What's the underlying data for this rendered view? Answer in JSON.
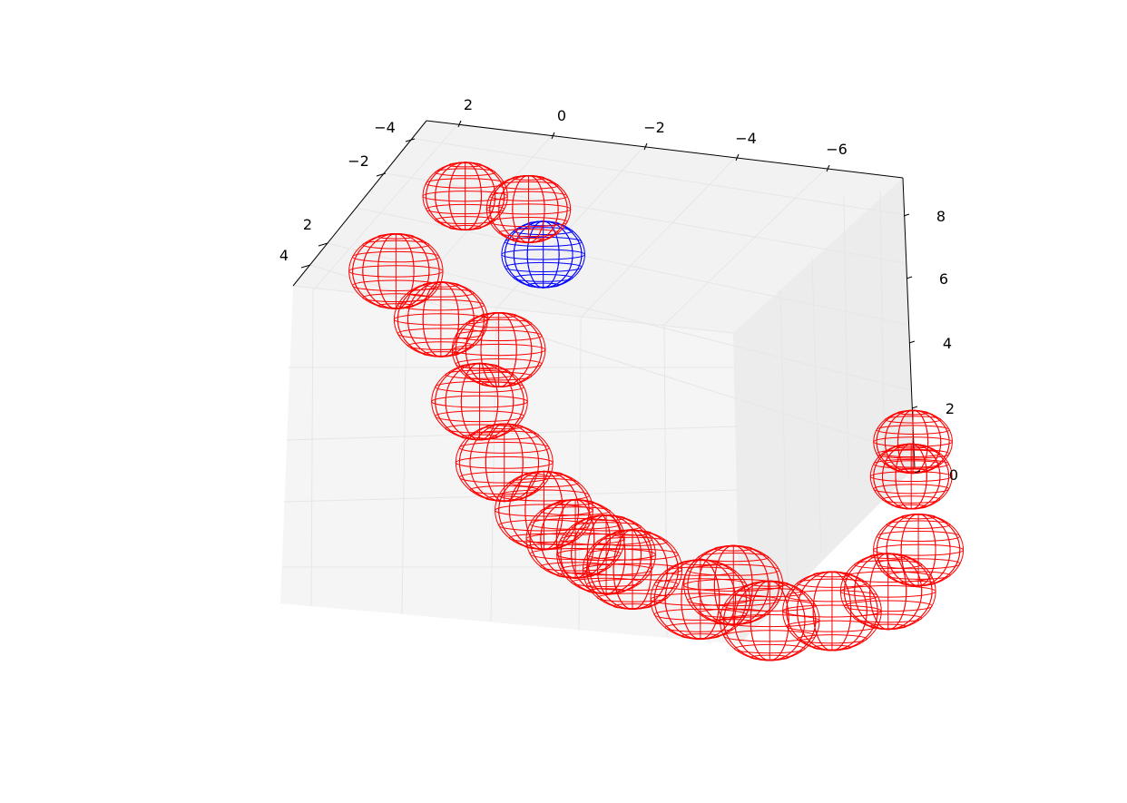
{
  "chart_data": {
    "type": "scatter3d",
    "title": "",
    "xlabel": "",
    "ylabel": "",
    "zlabel": "",
    "x_ticks": [
      "2",
      "0",
      "−2",
      "−4",
      "−6"
    ],
    "y_ticks": [
      "−4",
      "−2",
      "2",
      "4"
    ],
    "z_ticks": [
      "0",
      "2",
      "4",
      "6",
      "8"
    ],
    "grid": true,
    "marker": "wireframe-sphere",
    "colors": {
      "highlight": "#0000ff",
      "others": "#ff0000"
    },
    "series": [
      {
        "color": "#0000ff",
        "points": [
          {
            "x": 1.3,
            "y": 0.8,
            "z": 6.8
          }
        ]
      },
      {
        "color": "#ff0000",
        "points": [
          {
            "x": 2.8,
            "y": 1.2,
            "z": 8.6
          },
          {
            "x": 1.5,
            "y": 1.0,
            "z": 8.3
          },
          {
            "x": 3.5,
            "y": 3.5,
            "z": 7.6
          },
          {
            "x": 2.6,
            "y": 3.4,
            "z": 6.2
          },
          {
            "x": 1.4,
            "y": 3.3,
            "z": 5.4
          },
          {
            "x": 1.6,
            "y": 4.0,
            "z": 4.2
          },
          {
            "x": 1.0,
            "y": 4.3,
            "z": 2.6
          },
          {
            "x": 0.1,
            "y": 4.5,
            "z": 1.4
          },
          {
            "x": -0.6,
            "y": 4.6,
            "z": 0.7
          },
          {
            "x": -1.3,
            "y": 4.7,
            "z": 0.4
          },
          {
            "x": -1.9,
            "y": 4.8,
            "z": 0.1
          },
          {
            "x": -3.4,
            "y": 4.9,
            "z": -0.5
          },
          {
            "x": -4.1,
            "y": 4.8,
            "z": 0.0
          },
          {
            "x": -4.9,
            "y": 4.9,
            "z": -0.9
          },
          {
            "x": -6.2,
            "y": 4.7,
            "z": -0.5
          },
          {
            "x": -7.1,
            "y": 3.8,
            "z": -0.3
          },
          {
            "x": -7.3,
            "y": 2.5,
            "z": 0.2
          },
          {
            "x": -6.4,
            "y": 0.4,
            "z": 1.0
          },
          {
            "x": -6.2,
            "y": -0.3,
            "z": 1.6
          }
        ]
      }
    ]
  }
}
